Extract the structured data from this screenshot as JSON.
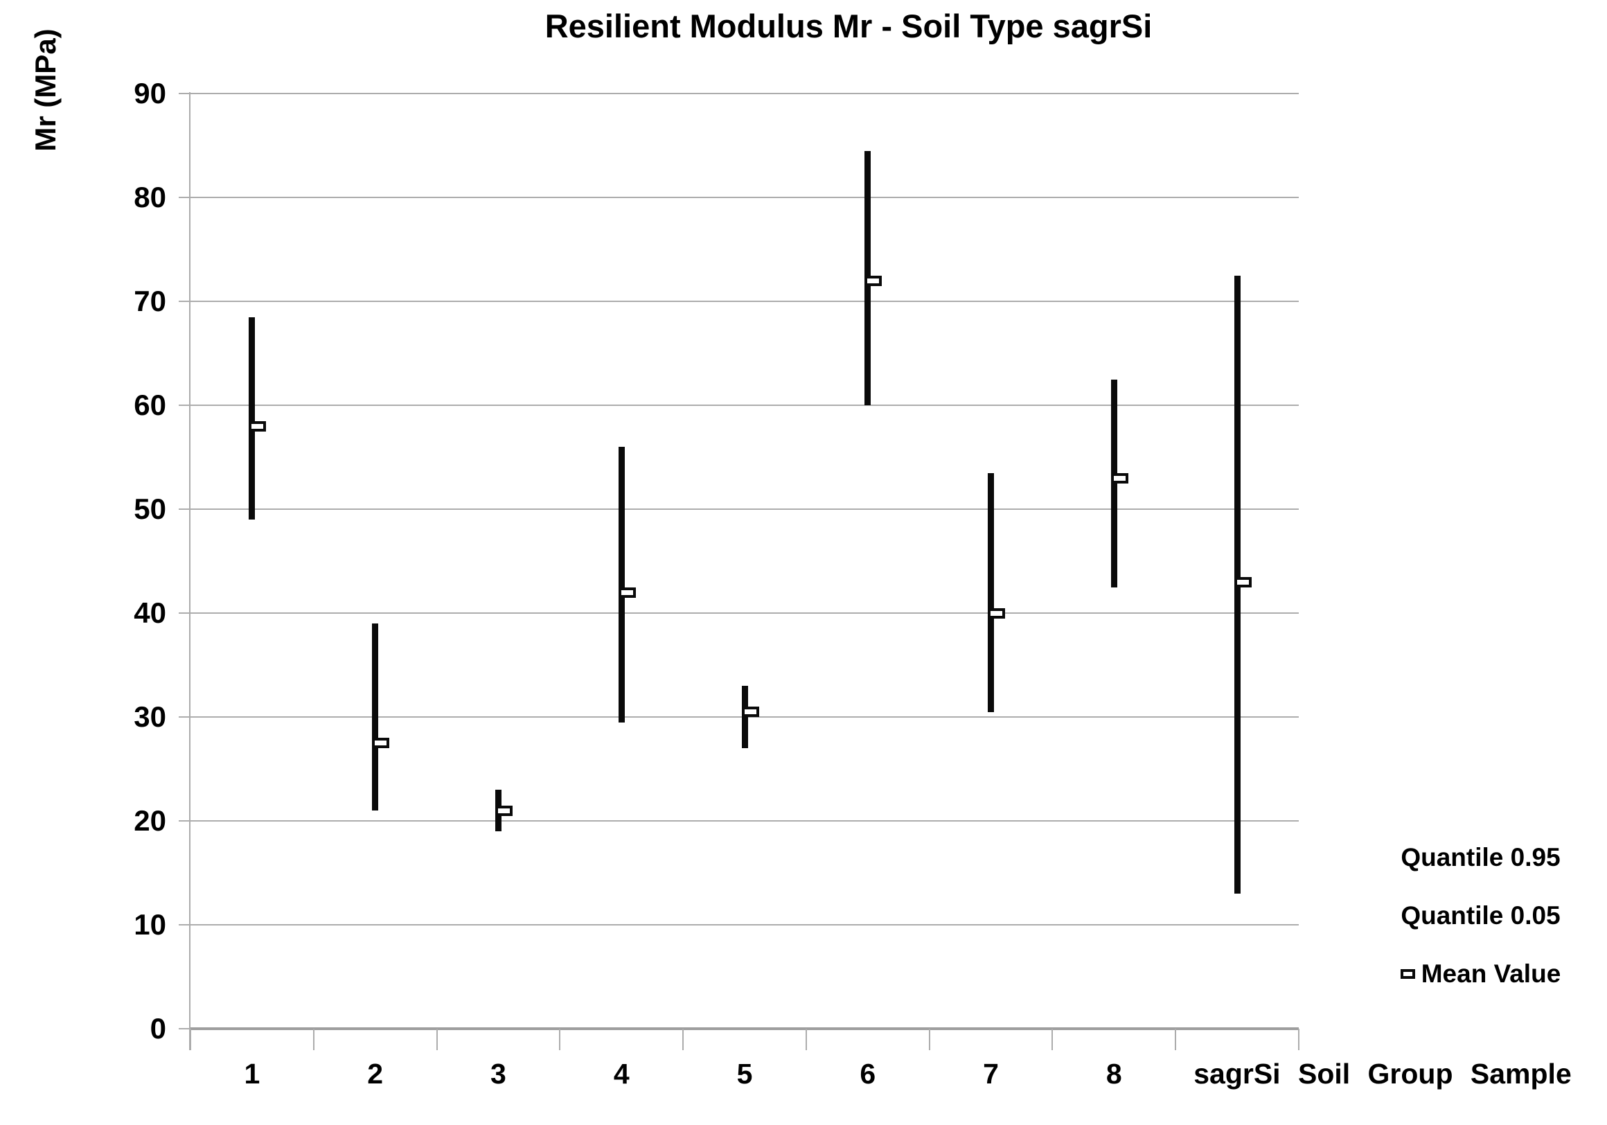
{
  "chart": {
    "title": "Resilient Modulus Mr - Soil Type sagrSi",
    "y_axis_label": "Mr (MPa)"
  },
  "legend": {
    "items": [
      {
        "label": "Quantile 0.95",
        "marker": "none"
      },
      {
        "label": "Quantile 0.05",
        "marker": "none"
      },
      {
        "label": "Mean Value",
        "marker": "hollow-square"
      }
    ]
  },
  "colors": {
    "bar": "#0a0a0a",
    "gridline": "#acacac",
    "axis": "#9e9e9e",
    "text": "#000000",
    "background": "#ffffff"
  },
  "chart_data": {
    "type": "bar",
    "subtype": "quantile-range-bars-with-mean-marker",
    "title": "Resilient Modulus Mr - Soil Type sagrSi",
    "xlabel": "",
    "ylabel": "Mr (MPa)",
    "ylim": [
      0,
      90
    ],
    "ytick_step": 10,
    "grid": "horizontal",
    "legend_position": "bottom-right",
    "categories": [
      "1",
      "2",
      "3",
      "4",
      "5",
      "6",
      "7",
      "8",
      "sagrSi Soil Group Sample"
    ],
    "series": [
      {
        "name": "Quantile 0.95",
        "values": [
          68.5,
          39,
          23,
          56,
          33,
          84.5,
          53.5,
          62.5,
          72.5
        ]
      },
      {
        "name": "Quantile 0.05",
        "values": [
          49,
          21,
          19,
          29.5,
          27,
          60,
          30.5,
          42.5,
          13
        ]
      },
      {
        "name": "Mean Value",
        "values": [
          58,
          27.5,
          21,
          42,
          30.5,
          72,
          40,
          53,
          43
        ]
      }
    ]
  }
}
